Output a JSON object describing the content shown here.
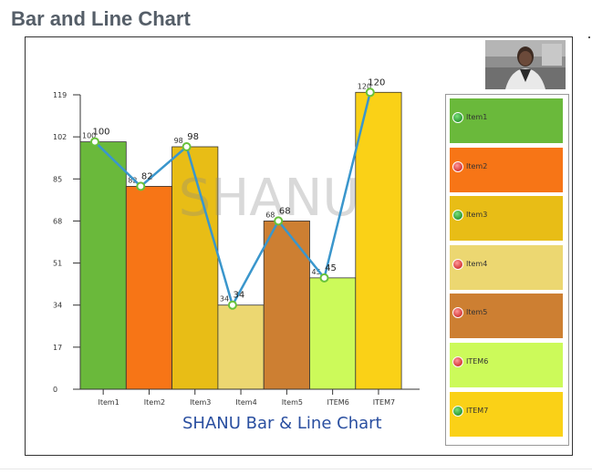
{
  "page": {
    "title": "Bar and Line Chart"
  },
  "chart_data": {
    "type": "bar+line",
    "title": "SHANU Bar & Line Chart",
    "watermark": "SHANU",
    "categories": [
      "Item1",
      "Item2",
      "Item3",
      "Item4",
      "Item5",
      "ITEM6",
      "ITEM7"
    ],
    "series": [
      {
        "type": "bar",
        "values": [
          100,
          82,
          98,
          34,
          68,
          45,
          120
        ],
        "colors": [
          "#6ab93b",
          "#f77516",
          "#e8bd16",
          "#ecd771",
          "#cd7f32",
          "#ccfa5a",
          "#fad117"
        ]
      },
      {
        "type": "line",
        "values": [
          100,
          82,
          98,
          34,
          68,
          45,
          120
        ],
        "color": "#3a96cc"
      }
    ],
    "yticks": [
      0,
      17,
      34,
      51,
      68,
      85,
      102,
      119
    ],
    "ylim": [
      0,
      119
    ],
    "legend": {
      "position": "right",
      "items": [
        {
          "label": "Item1",
          "dot": "green"
        },
        {
          "label": "Item2",
          "dot": "red"
        },
        {
          "label": "Item3",
          "dot": "green"
        },
        {
          "label": "Item4",
          "dot": "red"
        },
        {
          "label": "Item5",
          "dot": "red"
        },
        {
          "label": "ITEM6",
          "dot": "red"
        },
        {
          "label": "ITEM7",
          "dot": "green"
        }
      ]
    }
  }
}
